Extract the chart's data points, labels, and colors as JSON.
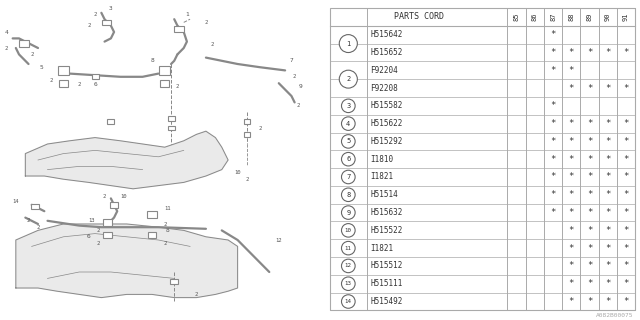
{
  "bg_color": "#ffffff",
  "col_header": "PARTS CORD",
  "years": [
    "85",
    "86",
    "87",
    "88",
    "89",
    "90",
    "91"
  ],
  "rows": [
    {
      "num": "1",
      "parts": [
        "H515642",
        "H515652"
      ],
      "marks": [
        [
          "",
          "",
          "*",
          "",
          "",
          "",
          ""
        ],
        [
          "",
          "",
          "*",
          "*",
          "*",
          "*",
          "*"
        ]
      ]
    },
    {
      "num": "2",
      "parts": [
        "F92204",
        "F92208"
      ],
      "marks": [
        [
          "",
          "",
          "*",
          "*",
          "",
          "",
          ""
        ],
        [
          "",
          "",
          "",
          "*",
          "*",
          "*",
          "*"
        ]
      ]
    },
    {
      "num": "3",
      "parts": [
        "H515582"
      ],
      "marks": [
        [
          "",
          "",
          "*",
          "",
          "",
          "",
          ""
        ]
      ]
    },
    {
      "num": "4",
      "parts": [
        "H515622"
      ],
      "marks": [
        [
          "",
          "",
          "*",
          "*",
          "*",
          "*",
          "*"
        ]
      ]
    },
    {
      "num": "5",
      "parts": [
        "H515292"
      ],
      "marks": [
        [
          "",
          "",
          "*",
          "*",
          "*",
          "*",
          "*"
        ]
      ]
    },
    {
      "num": "6",
      "parts": [
        "I1810"
      ],
      "marks": [
        [
          "",
          "",
          "*",
          "*",
          "*",
          "*",
          "*"
        ]
      ]
    },
    {
      "num": "7",
      "parts": [
        "I1821"
      ],
      "marks": [
        [
          "",
          "",
          "*",
          "*",
          "*",
          "*",
          "*"
        ]
      ]
    },
    {
      "num": "8",
      "parts": [
        "H51514"
      ],
      "marks": [
        [
          "",
          "",
          "*",
          "*",
          "*",
          "*",
          "*"
        ]
      ]
    },
    {
      "num": "9",
      "parts": [
        "H515632"
      ],
      "marks": [
        [
          "",
          "",
          "*",
          "*",
          "*",
          "*",
          "*"
        ]
      ]
    },
    {
      "num": "10",
      "parts": [
        "H515522"
      ],
      "marks": [
        [
          "",
          "",
          "",
          "*",
          "*",
          "*",
          "*"
        ]
      ]
    },
    {
      "num": "11",
      "parts": [
        "I1821"
      ],
      "marks": [
        [
          "",
          "",
          "",
          "*",
          "*",
          "*",
          "*"
        ]
      ]
    },
    {
      "num": "12",
      "parts": [
        "H515512"
      ],
      "marks": [
        [
          "",
          "",
          "",
          "*",
          "*",
          "*",
          "*"
        ]
      ]
    },
    {
      "num": "13",
      "parts": [
        "H515111"
      ],
      "marks": [
        [
          "",
          "",
          "",
          "*",
          "*",
          "*",
          "*"
        ]
      ]
    },
    {
      "num": "14",
      "parts": [
        "H515492"
      ],
      "marks": [
        [
          "",
          "",
          "",
          "*",
          "*",
          "*",
          "*"
        ]
      ]
    }
  ],
  "line_color": "#888888",
  "font_color": "#555555",
  "table_line_color": "#aaaaaa",
  "watermark": "A082B00075",
  "diagram_split": 0.495
}
